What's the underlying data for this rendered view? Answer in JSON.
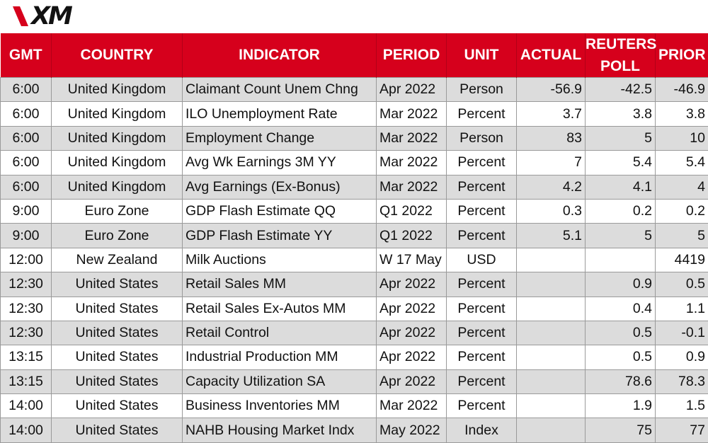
{
  "brand": {
    "logo_text": "XM",
    "accent_color": "#d6001c"
  },
  "table": {
    "headers": {
      "gmt": "GMT",
      "country": "COUNTRY",
      "indicator": "INDICATOR",
      "period": "PERIOD",
      "unit": "UNIT",
      "actual": "ACTUAL",
      "reuters_poll_line1": "REUTERS",
      "reuters_poll_line2": "POLL",
      "prior": "PRIOR"
    },
    "rows": [
      {
        "gmt": "6:00",
        "country": "United Kingdom",
        "indicator": "Claimant Count Unem Chng",
        "period": "Apr 2022",
        "unit": "Person",
        "actual": "-56.9",
        "poll": "-42.5",
        "prior": "-46.9",
        "shaded": true
      },
      {
        "gmt": "6:00",
        "country": "United Kingdom",
        "indicator": "ILO Unemployment Rate",
        "period": "Mar 2022",
        "unit": "Percent",
        "actual": "3.7",
        "poll": "3.8",
        "prior": "3.8",
        "shaded": false
      },
      {
        "gmt": "6:00",
        "country": "United Kingdom",
        "indicator": "Employment Change",
        "period": "Mar 2022",
        "unit": "Person",
        "actual": "83",
        "poll": "5",
        "prior": "10",
        "shaded": true
      },
      {
        "gmt": "6:00",
        "country": "United Kingdom",
        "indicator": "Avg Wk Earnings 3M YY",
        "period": "Mar 2022",
        "unit": "Percent",
        "actual": "7",
        "poll": "5.4",
        "prior": "5.4",
        "shaded": false
      },
      {
        "gmt": "6:00",
        "country": "United Kingdom",
        "indicator": "Avg Earnings (Ex-Bonus)",
        "period": "Mar 2022",
        "unit": "Percent",
        "actual": "4.2",
        "poll": "4.1",
        "prior": "4",
        "shaded": true
      },
      {
        "gmt": "9:00",
        "country": "Euro Zone",
        "indicator": "GDP Flash Estimate QQ",
        "period": "Q1 2022",
        "unit": "Percent",
        "actual": "0.3",
        "poll": "0.2",
        "prior": "0.2",
        "shaded": false
      },
      {
        "gmt": "9:00",
        "country": "Euro Zone",
        "indicator": "GDP Flash Estimate YY",
        "period": "Q1 2022",
        "unit": "Percent",
        "actual": "5.1",
        "poll": "5",
        "prior": "5",
        "shaded": true
      },
      {
        "gmt": "12:00",
        "country": "New Zealand",
        "indicator": "Milk Auctions",
        "period": "W 17 May",
        "unit": "USD",
        "actual": "",
        "poll": "",
        "prior": "4419",
        "shaded": false
      },
      {
        "gmt": "12:30",
        "country": "United States",
        "indicator": "Retail Sales MM",
        "period": "Apr 2022",
        "unit": "Percent",
        "actual": "",
        "poll": "0.9",
        "prior": "0.5",
        "shaded": true
      },
      {
        "gmt": "12:30",
        "country": "United States",
        "indicator": "Retail Sales Ex-Autos MM",
        "period": "Apr 2022",
        "unit": "Percent",
        "actual": "",
        "poll": "0.4",
        "prior": "1.1",
        "shaded": false
      },
      {
        "gmt": "12:30",
        "country": "United States",
        "indicator": "Retail Control",
        "period": "Apr 2022",
        "unit": "Percent",
        "actual": "",
        "poll": "0.5",
        "prior": "-0.1",
        "shaded": true
      },
      {
        "gmt": "13:15",
        "country": "United States",
        "indicator": "Industrial Production MM",
        "period": "Apr 2022",
        "unit": "Percent",
        "actual": "",
        "poll": "0.5",
        "prior": "0.9",
        "shaded": false
      },
      {
        "gmt": "13:15",
        "country": "United States",
        "indicator": "Capacity Utilization SA",
        "period": "Apr 2022",
        "unit": "Percent",
        "actual": "",
        "poll": "78.6",
        "prior": "78.3",
        "shaded": true
      },
      {
        "gmt": "14:00",
        "country": "United States",
        "indicator": "Business Inventories MM",
        "period": "Mar 2022",
        "unit": "Percent",
        "actual": "",
        "poll": "1.9",
        "prior": "1.5",
        "shaded": false
      },
      {
        "gmt": "14:00",
        "country": "United States",
        "indicator": "NAHB Housing Market Indx",
        "period": "May 2022",
        "unit": "Index",
        "actual": "",
        "poll": "75",
        "prior": "77",
        "shaded": true
      }
    ]
  }
}
